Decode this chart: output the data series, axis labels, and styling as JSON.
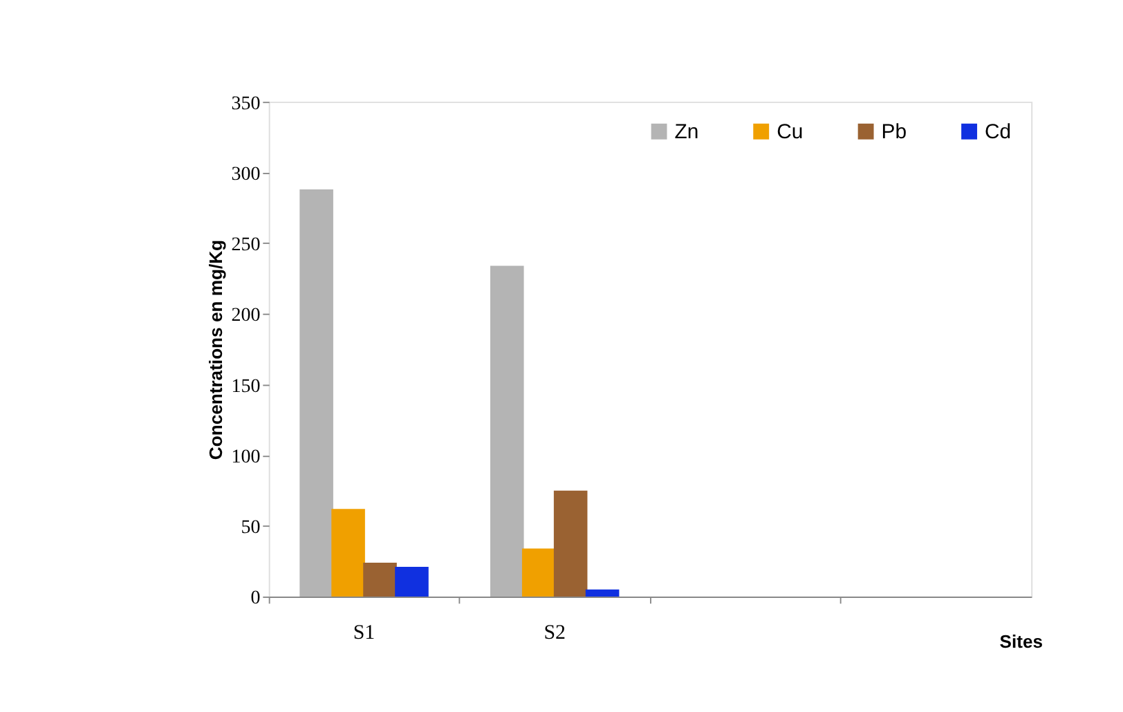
{
  "chart_data": {
    "type": "bar",
    "xlabel": "Sites",
    "ylabel": "Concentrations en mg/Kg",
    "categories": [
      "S1",
      "S2",
      null,
      null
    ],
    "series": [
      {
        "name": "Zn",
        "color": "#b4b4b4",
        "values": [
          288,
          234,
          null,
          null
        ]
      },
      {
        "name": "Cu",
        "color": "#f0a000",
        "values": [
          62,
          34,
          null,
          null
        ]
      },
      {
        "name": "Pb",
        "color": "#9a6232",
        "values": [
          24,
          75,
          null,
          null
        ]
      },
      {
        "name": "Cd",
        "color": "#1030e0",
        "values": [
          21,
          5,
          null,
          null
        ]
      }
    ],
    "ylim": [
      0,
      350
    ],
    "yticks": [
      0,
      50,
      100,
      150,
      200,
      250,
      300,
      350
    ],
    "grid": false,
    "legend": "top right"
  }
}
